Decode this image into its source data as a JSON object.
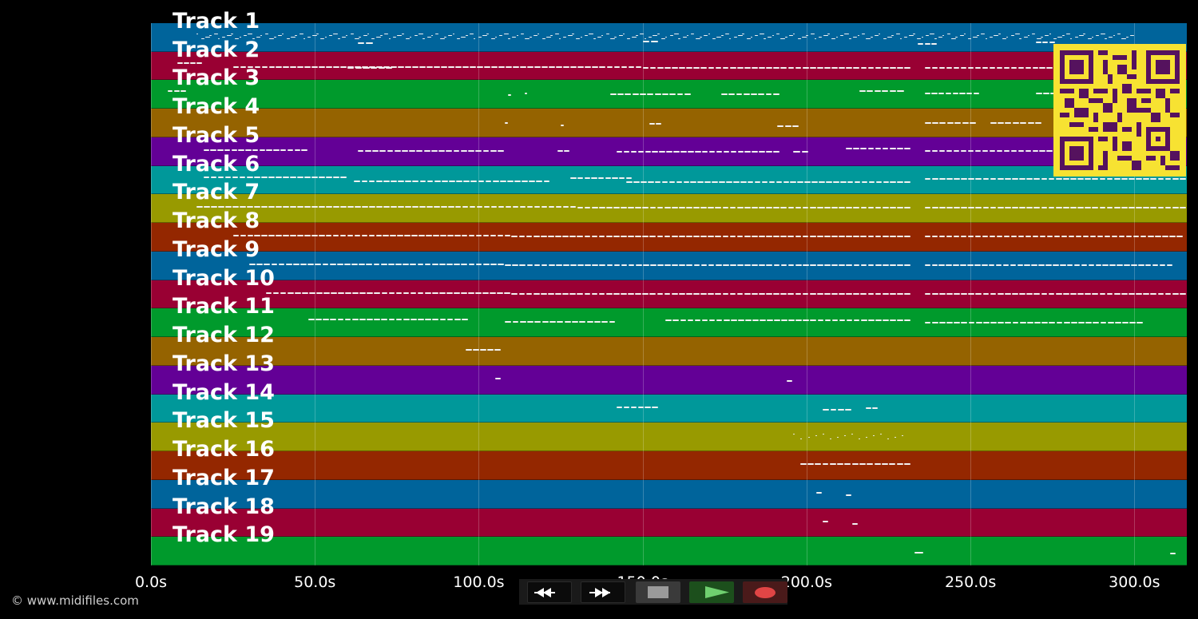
{
  "window": {
    "copyright": "© www.midifiles.com"
  },
  "timeline": {
    "min_seconds": 0,
    "max_seconds": 316,
    "grid_seconds": [
      0,
      50,
      100,
      150,
      200,
      250,
      300
    ],
    "tick_labels": [
      "0.0s",
      "50.0s",
      "100.0s",
      "150.0s",
      "200.0s",
      "250.0s",
      "300.0s"
    ]
  },
  "colors": {
    "background": "#000000",
    "note": "#f2f2f2",
    "lane_palette": [
      "#00649b",
      "#990033",
      "#009a2c",
      "#956300",
      "#630096",
      "#00989a",
      "#989a00",
      "#942700"
    ],
    "qr_dark": "#55125e",
    "qr_light": "#f7e232"
  },
  "tracks": [
    {
      "label": "Track 1",
      "color": "#00649b",
      "notes": [
        [
          14,
          300,
          2,
          "dense"
        ],
        [
          63,
          68,
          4,
          ""
        ],
        [
          150,
          155,
          4,
          ""
        ],
        [
          234,
          240,
          4,
          ""
        ],
        [
          270,
          276,
          4,
          ""
        ]
      ]
    },
    {
      "label": "Track 2",
      "color": "#990033",
      "notes": [
        [
          8,
          16,
          0,
          ""
        ],
        [
          25,
          95,
          1,
          ""
        ],
        [
          95,
          150,
          2,
          ""
        ],
        [
          150,
          232,
          1,
          ""
        ],
        [
          236,
          282,
          2,
          ""
        ],
        [
          60,
          74,
          3,
          ""
        ]
      ]
    },
    {
      "label": "Track 3",
      "color": "#009a2c",
      "notes": [
        [
          5,
          11,
          0,
          ""
        ],
        [
          109,
          110,
          1,
          ""
        ],
        [
          114,
          115,
          1,
          ""
        ],
        [
          140,
          165,
          0,
          ""
        ],
        [
          174,
          192,
          1,
          ""
        ],
        [
          216,
          230,
          0,
          ""
        ],
        [
          236,
          253,
          0,
          ""
        ],
        [
          270,
          290,
          1,
          ""
        ]
      ]
    },
    {
      "label": "Track 4",
      "color": "#956300",
      "notes": [
        [
          108,
          109,
          2,
          ""
        ],
        [
          125,
          126,
          2,
          ""
        ],
        [
          152,
          156,
          2,
          ""
        ],
        [
          191,
          198,
          2,
          ""
        ],
        [
          236,
          252,
          1,
          ""
        ],
        [
          256,
          272,
          2,
          ""
        ]
      ]
    },
    {
      "label": "Track 5",
      "color": "#630096",
      "notes": [
        [
          16,
          48,
          1,
          ""
        ],
        [
          63,
          108,
          0,
          ""
        ],
        [
          124,
          128,
          1,
          ""
        ],
        [
          142,
          192,
          0,
          ""
        ],
        [
          196,
          201,
          1,
          ""
        ],
        [
          212,
          232,
          0,
          ""
        ],
        [
          236,
          282,
          0,
          ""
        ]
      ]
    },
    {
      "label": "Track 6",
      "color": "#00989a",
      "notes": [
        [
          16,
          60,
          0,
          ""
        ],
        [
          62,
          122,
          1,
          ""
        ],
        [
          128,
          147,
          0,
          ""
        ],
        [
          145,
          232,
          1,
          ""
        ],
        [
          236,
          316,
          0,
          ""
        ]
      ]
    },
    {
      "label": "Track 7",
      "color": "#989a00",
      "notes": [
        [
          14,
          130,
          1,
          ""
        ],
        [
          130,
          232,
          0,
          ""
        ],
        [
          236,
          316,
          1,
          ""
        ]
      ]
    },
    {
      "label": "Track 8",
      "color": "#942700",
      "notes": [
        [
          25,
          110,
          1,
          ""
        ],
        [
          110,
          232,
          0,
          ""
        ],
        [
          236,
          315,
          1,
          ""
        ]
      ]
    },
    {
      "label": "Track 9",
      "color": "#00649b",
      "notes": [
        [
          30,
          108,
          1,
          ""
        ],
        [
          108,
          232,
          0,
          ""
        ],
        [
          236,
          312,
          1,
          ""
        ]
      ]
    },
    {
      "label": "Track 10",
      "color": "#990033",
      "notes": [
        [
          35,
          110,
          1,
          ""
        ],
        [
          110,
          232,
          0,
          ""
        ],
        [
          236,
          316,
          1,
          ""
        ]
      ]
    },
    {
      "label": "Track 11",
      "color": "#009a2c",
      "notes": [
        [
          48,
          97,
          0,
          ""
        ],
        [
          108,
          142,
          0,
          ""
        ],
        [
          157,
          232,
          0,
          ""
        ],
        [
          236,
          303,
          0,
          ""
        ]
      ]
    },
    {
      "label": "Track 12",
      "color": "#956300",
      "notes": [
        [
          96,
          107,
          1,
          ""
        ]
      ]
    },
    {
      "label": "Track 13",
      "color": "#630096",
      "notes": [
        [
          105,
          107,
          1,
          ""
        ],
        [
          194,
          196,
          1,
          ""
        ]
      ]
    },
    {
      "label": "Track 14",
      "color": "#00989a",
      "notes": [
        [
          142,
          155,
          1,
          ""
        ],
        [
          205,
          214,
          1,
          ""
        ],
        [
          218,
          222,
          1,
          ""
        ]
      ]
    },
    {
      "label": "Track 15",
      "color": "#989a00",
      "notes": [
        [
          196,
          230,
          2,
          "dotted"
        ]
      ]
    },
    {
      "label": "Track 16",
      "color": "#942700",
      "notes": [
        [
          198,
          232,
          1,
          ""
        ]
      ]
    },
    {
      "label": "Track 17",
      "color": "#00649b",
      "notes": [
        [
          203,
          205,
          1,
          ""
        ],
        [
          212,
          214,
          1,
          ""
        ]
      ]
    },
    {
      "label": "Track 18",
      "color": "#990033",
      "notes": [
        [
          205,
          207,
          1,
          ""
        ],
        [
          214,
          216,
          1,
          ""
        ]
      ]
    },
    {
      "label": "Track 19",
      "color": "#009a2c",
      "notes": [
        [
          233,
          236,
          3,
          ""
        ],
        [
          311,
          313,
          2,
          ""
        ]
      ]
    }
  ],
  "transport": {
    "rewind": "rewind-icon",
    "forward": "fast-forward-icon",
    "stop": "stop-icon",
    "play": "play-icon",
    "record": "record-icon"
  }
}
